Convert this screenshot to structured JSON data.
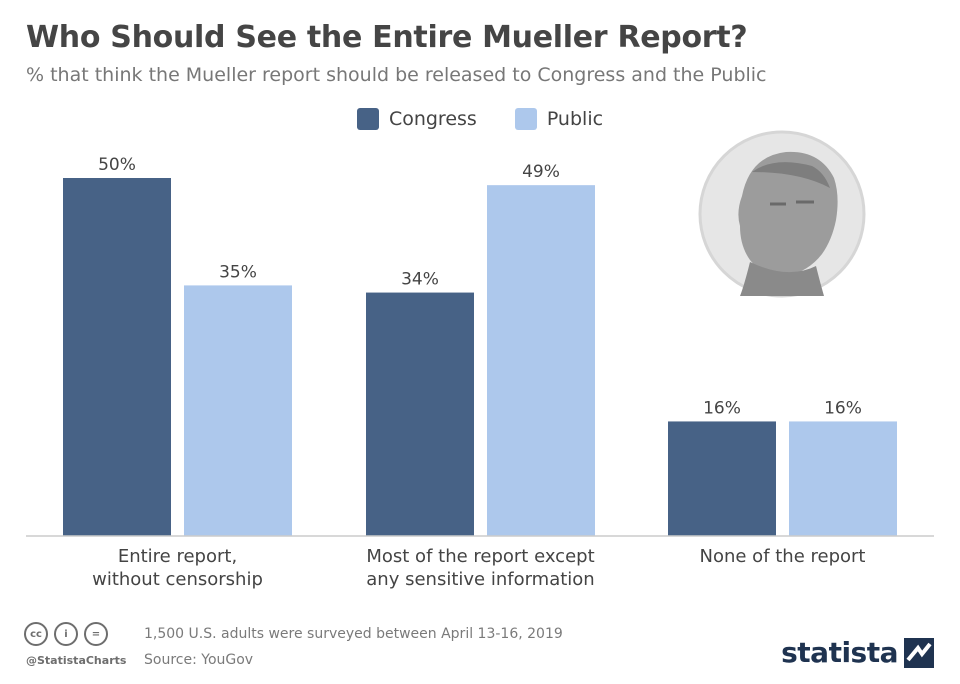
{
  "chart_data": {
    "type": "bar",
    "title": "Who Should See the Entire Mueller Report?",
    "subtitle": "% that think the Mueller report should be released to Congress and the Public",
    "categories": [
      "Entire report,\nwithout censorship",
      "Most of the report except\nany sensitive information",
      "None of the report"
    ],
    "series": [
      {
        "name": "Congress",
        "values": [
          50,
          34,
          16
        ],
        "color": "#476286"
      },
      {
        "name": "Public",
        "values": [
          35,
          49,
          16
        ],
        "color": "#adc8ec"
      }
    ],
    "value_suffix": "%",
    "ylim": [
      0,
      50
    ],
    "legend": "top-center",
    "grid": false
  },
  "footer": {
    "note": "1,500 U.S. adults were surveyed between April 13-16, 2019",
    "source": "Source: YouGov",
    "handle": "@StatistaCharts",
    "brand": "statista",
    "cc_icons": [
      "cc",
      "i",
      "="
    ]
  },
  "colors": {
    "axis": "#cccccc",
    "label": "#444444",
    "portrait": "#e6e6e6"
  }
}
